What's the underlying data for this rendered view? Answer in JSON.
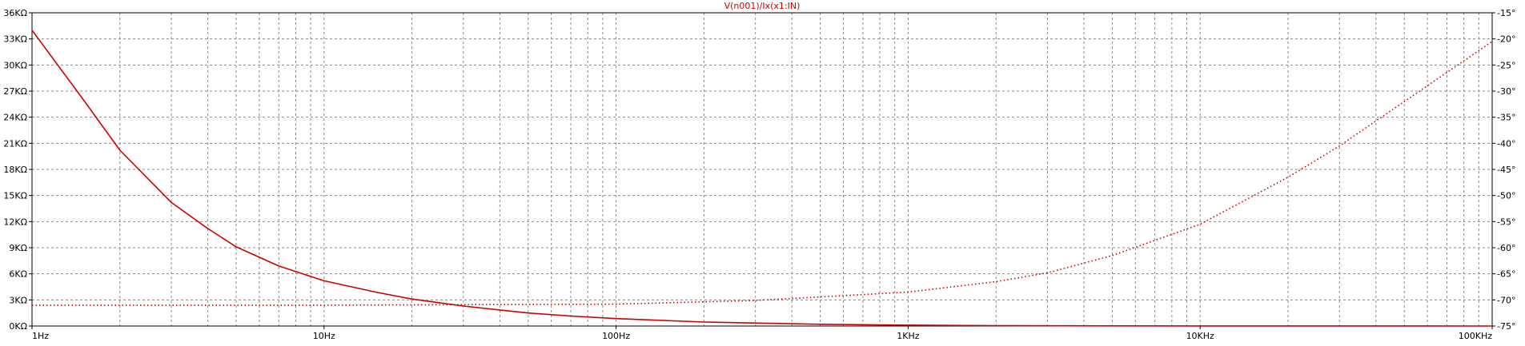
{
  "chart_data": {
    "type": "line",
    "title": "V(n001)/Ix(x1:IN)",
    "x_scale": "log",
    "xlim_hz": [
      1,
      100000
    ],
    "x_tick_values": [
      1,
      10,
      100,
      1000,
      10000,
      100000
    ],
    "x_tick_labels": [
      "1Hz",
      "10Hz",
      "100Hz",
      "1KHz",
      "10KHz",
      "100KHz"
    ],
    "y_left": {
      "unit": "KΩ",
      "ylim": [
        0,
        36
      ],
      "tick_values": [
        0,
        3,
        6,
        9,
        12,
        15,
        18,
        21,
        24,
        27,
        30,
        33,
        36
      ],
      "tick_labels": [
        "0KΩ",
        "3KΩ",
        "6KΩ",
        "9KΩ",
        "12KΩ",
        "15KΩ",
        "18KΩ",
        "21KΩ",
        "24KΩ",
        "27KΩ",
        "30KΩ",
        "33KΩ",
        "36KΩ"
      ]
    },
    "y_right": {
      "unit": "°",
      "ylim": [
        -75,
        -15
      ],
      "tick_values": [
        -75,
        -70,
        -65,
        -60,
        -55,
        -50,
        -45,
        -40,
        -35,
        -30,
        -25,
        -20,
        -15
      ],
      "tick_labels": [
        "-75°",
        "-70°",
        "-65°",
        "-60°",
        "-55°",
        "-50°",
        "-45°",
        "-40°",
        "-35°",
        "-30°",
        "-25°",
        "-20°",
        "-15°"
      ]
    },
    "grid": true,
    "series": [
      {
        "axis": "left",
        "style": "solid",
        "color": "#cc0000",
        "x": [
          1,
          1.5,
          2,
          3,
          4,
          5,
          7,
          10,
          15,
          20,
          30,
          50,
          70,
          100,
          200,
          500,
          1000,
          2000,
          5000,
          10000,
          100000
        ],
        "y": [
          34,
          26,
          20.2,
          14.2,
          11.2,
          9.1,
          6.9,
          5.2,
          3.9,
          3.1,
          2.3,
          1.5,
          1.15,
          0.85,
          0.46,
          0.2,
          0.1,
          0.05,
          0.02,
          0.01,
          0
        ]
      },
      {
        "axis": "right",
        "style": "dotted",
        "color": "#cc0000",
        "x": [
          1,
          10,
          100,
          300,
          1000,
          2000,
          3000,
          5000,
          10000,
          20000,
          30000,
          50000,
          100000
        ],
        "y": [
          -71,
          -71,
          -70.8,
          -70.1,
          -68.5,
          -66.5,
          -64.8,
          -61.5,
          -55.5,
          -46.5,
          -40.5,
          -32,
          -20.5
        ]
      }
    ]
  }
}
